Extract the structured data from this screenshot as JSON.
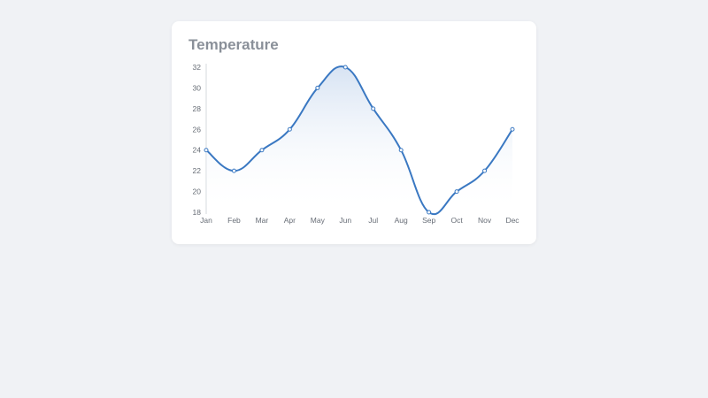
{
  "card": {
    "title": "Temperature"
  },
  "chart_data": {
    "type": "area",
    "title": "Temperature",
    "xlabel": "",
    "ylabel": "",
    "categories": [
      "Jan",
      "Feb",
      "Mar",
      "Apr",
      "May",
      "Jun",
      "Jul",
      "Aug",
      "Sep",
      "Oct",
      "Nov",
      "Dec"
    ],
    "values": [
      24,
      22,
      24,
      26,
      30,
      32,
      28,
      24,
      18,
      20,
      22,
      26
    ],
    "ylim": [
      18,
      32
    ],
    "yticks": [
      18,
      20,
      22,
      24,
      26,
      28,
      30,
      32
    ],
    "grid": false,
    "legend": "none",
    "smooth": true,
    "line_color": "#3a78c2",
    "fill_color": "#dbe6f5"
  }
}
